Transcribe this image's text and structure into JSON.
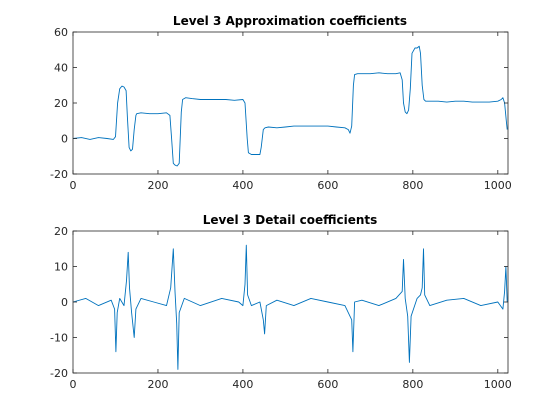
{
  "chart_data": [
    {
      "type": "line",
      "title": "Level 3 Approximation coefficients",
      "xlabel": "",
      "ylabel": "",
      "xlim": [
        0,
        1024
      ],
      "ylim": [
        -20,
        60
      ],
      "xticks": [
        0,
        200,
        400,
        600,
        800,
        1000
      ],
      "yticks": [
        -20,
        0,
        20,
        40,
        60
      ],
      "grid": false,
      "line_color": "#0072BD",
      "series": [
        {
          "points": [
            [
              0,
              0
            ],
            [
              20,
              0.5
            ],
            [
              40,
              -0.5
            ],
            [
              60,
              0.5
            ],
            [
              80,
              0
            ],
            [
              95,
              -0.5
            ],
            [
              100,
              1
            ],
            [
              105,
              20
            ],
            [
              110,
              28
            ],
            [
              115,
              29.5
            ],
            [
              120,
              29
            ],
            [
              125,
              27
            ],
            [
              128,
              12
            ],
            [
              132,
              -5
            ],
            [
              136,
              -7
            ],
            [
              140,
              -6
            ],
            [
              144,
              5
            ],
            [
              148,
              13
            ],
            [
              150,
              14
            ],
            [
              160,
              14.5
            ],
            [
              180,
              14
            ],
            [
              200,
              14
            ],
            [
              220,
              14.5
            ],
            [
              228,
              13
            ],
            [
              232,
              0
            ],
            [
              236,
              -14
            ],
            [
              240,
              -15
            ],
            [
              245,
              -15.5
            ],
            [
              250,
              -14
            ],
            [
              255,
              15
            ],
            [
              258,
              22
            ],
            [
              265,
              23
            ],
            [
              280,
              22.5
            ],
            [
              300,
              22
            ],
            [
              320,
              22
            ],
            [
              340,
              22
            ],
            [
              360,
              22
            ],
            [
              380,
              21.5
            ],
            [
              400,
              22
            ],
            [
              405,
              20
            ],
            [
              410,
              0
            ],
            [
              413,
              -8
            ],
            [
              420,
              -9
            ],
            [
              430,
              -9
            ],
            [
              440,
              -9
            ],
            [
              443,
              -5
            ],
            [
              448,
              5
            ],
            [
              452,
              6
            ],
            [
              460,
              6.5
            ],
            [
              480,
              6
            ],
            [
              500,
              6.5
            ],
            [
              520,
              7
            ],
            [
              540,
              7
            ],
            [
              560,
              7
            ],
            [
              580,
              7
            ],
            [
              600,
              7
            ],
            [
              620,
              6.5
            ],
            [
              640,
              6
            ],
            [
              648,
              5
            ],
            [
              652,
              3
            ],
            [
              656,
              7
            ],
            [
              660,
              30
            ],
            [
              663,
              36
            ],
            [
              670,
              36.5
            ],
            [
              680,
              36.5
            ],
            [
              700,
              36.5
            ],
            [
              720,
              37
            ],
            [
              740,
              36.5
            ],
            [
              760,
              36.5
            ],
            [
              770,
              37
            ],
            [
              775,
              33
            ],
            [
              778,
              20
            ],
            [
              782,
              15
            ],
            [
              786,
              14
            ],
            [
              790,
              16
            ],
            [
              794,
              28
            ],
            [
              798,
              48
            ],
            [
              805,
              51
            ],
            [
              810,
              51
            ],
            [
              815,
              52
            ],
            [
              818,
              48
            ],
            [
              822,
              30
            ],
            [
              826,
              22
            ],
            [
              830,
              21
            ],
            [
              840,
              21
            ],
            [
              860,
              21
            ],
            [
              880,
              20.5
            ],
            [
              900,
              21
            ],
            [
              920,
              21
            ],
            [
              940,
              20.5
            ],
            [
              960,
              20.5
            ],
            [
              980,
              20.5
            ],
            [
              1000,
              21
            ],
            [
              1008,
              22
            ],
            [
              1012,
              23
            ],
            [
              1016,
              20
            ],
            [
              1020,
              10
            ],
            [
              1022,
              5
            ]
          ]
        }
      ]
    },
    {
      "type": "line",
      "title": "Level 3 Detail coefficients",
      "xlabel": "",
      "ylabel": "",
      "xlim": [
        0,
        1024
      ],
      "ylim": [
        -20,
        20
      ],
      "xticks": [
        0,
        200,
        400,
        600,
        800,
        1000
      ],
      "yticks": [
        -20,
        -10,
        0,
        10,
        20
      ],
      "grid": false,
      "line_color": "#0072BD",
      "series": [
        {
          "points": [
            [
              0,
              0
            ],
            [
              30,
              1
            ],
            [
              60,
              -1
            ],
            [
              90,
              0.5
            ],
            [
              98,
              -2
            ],
            [
              101,
              -14
            ],
            [
              104,
              -3
            ],
            [
              110,
              1
            ],
            [
              120,
              -1
            ],
            [
              126,
              6
            ],
            [
              130,
              14
            ],
            [
              133,
              4
            ],
            [
              138,
              -3
            ],
            [
              144,
              -10
            ],
            [
              148,
              -2
            ],
            [
              160,
              1
            ],
            [
              190,
              0
            ],
            [
              220,
              -1
            ],
            [
              230,
              4
            ],
            [
              236,
              15
            ],
            [
              240,
              3
            ],
            [
              244,
              -6
            ],
            [
              247,
              -19
            ],
            [
              250,
              -3
            ],
            [
              262,
              1
            ],
            [
              300,
              -1
            ],
            [
              350,
              1
            ],
            [
              390,
              0
            ],
            [
              400,
              -1
            ],
            [
              405,
              5
            ],
            [
              408,
              16
            ],
            [
              411,
              2
            ],
            [
              420,
              -1
            ],
            [
              440,
              0
            ],
            [
              448,
              -5
            ],
            [
              451,
              -9
            ],
            [
              455,
              -1
            ],
            [
              480,
              0.5
            ],
            [
              520,
              -1
            ],
            [
              560,
              1
            ],
            [
              600,
              0
            ],
            [
              640,
              -1
            ],
            [
              656,
              -5
            ],
            [
              659,
              -14
            ],
            [
              663,
              0
            ],
            [
              680,
              0.5
            ],
            [
              720,
              -1
            ],
            [
              760,
              1
            ],
            [
              775,
              3
            ],
            [
              778,
              12
            ],
            [
              782,
              1
            ],
            [
              788,
              -4
            ],
            [
              792,
              -17
            ],
            [
              796,
              -4
            ],
            [
              810,
              1
            ],
            [
              818,
              2
            ],
            [
              822,
              4
            ],
            [
              825,
              15
            ],
            [
              828,
              2
            ],
            [
              840,
              -1
            ],
            [
              880,
              0.5
            ],
            [
              920,
              1
            ],
            [
              960,
              -1
            ],
            [
              1000,
              0
            ],
            [
              1012,
              -2
            ],
            [
              1016,
              3
            ],
            [
              1019,
              10
            ],
            [
              1022,
              0
            ]
          ]
        }
      ]
    }
  ]
}
